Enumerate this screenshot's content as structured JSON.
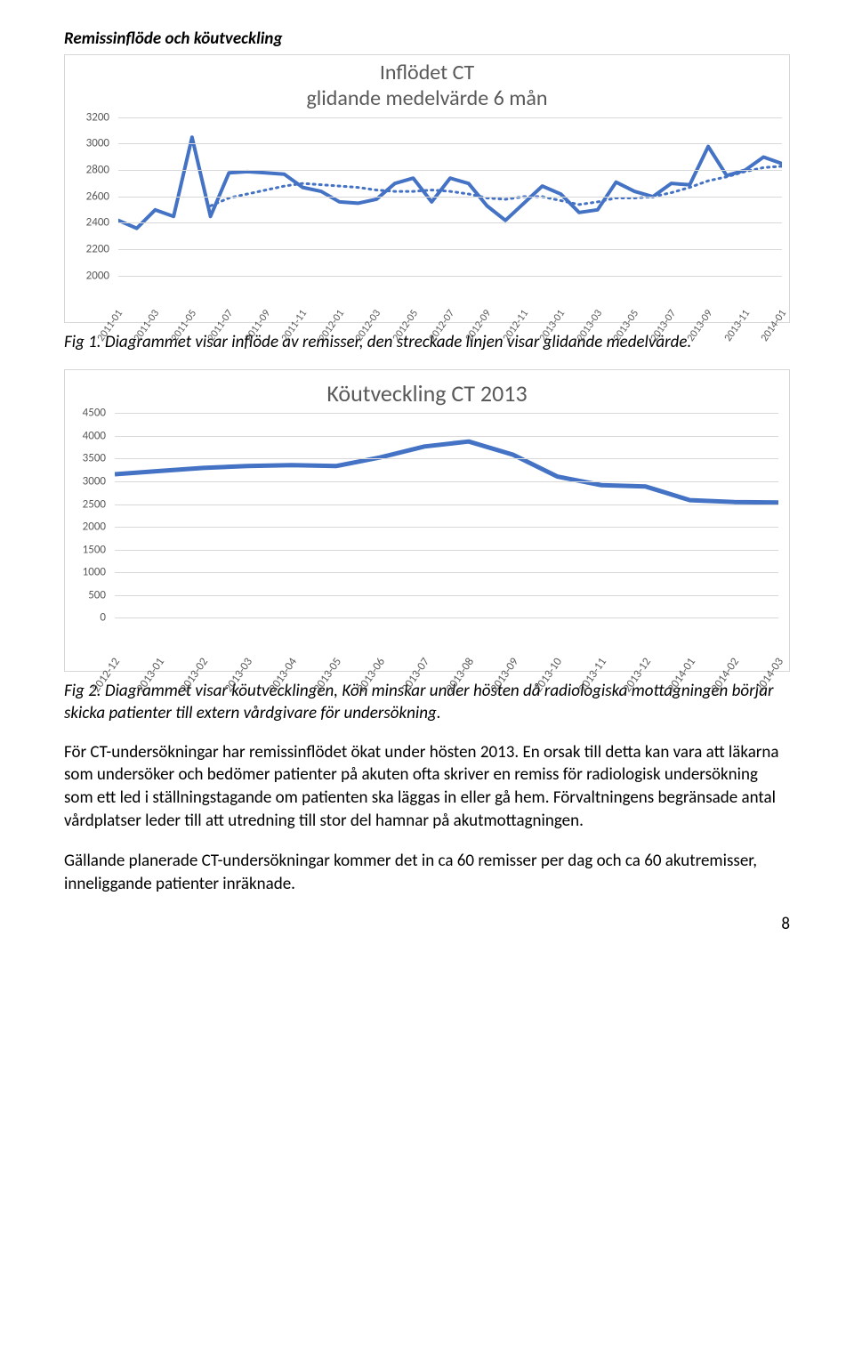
{
  "heading": "Remissinflöde och köutveckling",
  "chart1": {
    "title_line1": "Inflödet CT",
    "title_line2": "glidande medelvärde 6 mån",
    "ymin": 2000,
    "ymax": 3200,
    "ystep": 200,
    "x_labels": [
      "2011-01",
      "2011-03",
      "2011-05",
      "2011-07",
      "2011-09",
      "2011-11",
      "2012-01",
      "2012-03",
      "2012-05",
      "2012-07",
      "2012-09",
      "2012-11",
      "2013-01",
      "2013-03",
      "2013-05",
      "2013-07",
      "2013-09",
      "2013-11",
      "2014-01"
    ],
    "solid_values": [
      2420,
      2360,
      2500,
      2450,
      3050,
      2450,
      2780,
      2790,
      2780,
      2770,
      2670,
      2640,
      2560,
      2550,
      2580,
      2700,
      2740,
      2560,
      2740,
      2700,
      2530,
      2420,
      2550,
      2680,
      2620,
      2480,
      2500,
      2710,
      2640,
      2600,
      2700,
      2690,
      2980,
      2760,
      2800,
      2900,
      2850
    ],
    "dotted_values": [
      null,
      null,
      null,
      null,
      null,
      2530,
      2590,
      2620,
      2650,
      2680,
      2700,
      2690,
      2680,
      2670,
      2650,
      2640,
      2640,
      2650,
      2640,
      2620,
      2590,
      2580,
      2600,
      2600,
      2570,
      2540,
      2560,
      2590,
      2590,
      2600,
      2630,
      2670,
      2720,
      2750,
      2790,
      2820,
      2830
    ],
    "solid_color": "#4472c4",
    "dotted_color": "#4472c4",
    "grid_color": "#d9d9d9",
    "text_color": "#595959"
  },
  "caption1": "Fig 1. Diagrammet visar inflöde av remisser, den streckade linjen visar glidande medelvärde.",
  "chart2": {
    "title": "Köutveckling CT 2013",
    "ymin": 0,
    "ymax": 4500,
    "ystep": 500,
    "x_labels": [
      "2012-12",
      "2013-01",
      "2013-02",
      "2013-03",
      "2013-04",
      "2013-05",
      "2013-06",
      "2013-07",
      "2013-08",
      "2013-09",
      "2013-10",
      "2013-11",
      "2013-12",
      "2014-01",
      "2014-02",
      "2014-03"
    ],
    "values": [
      3150,
      3220,
      3290,
      3330,
      3350,
      3330,
      3520,
      3760,
      3870,
      3580,
      3100,
      2910,
      2880,
      2580,
      2540,
      2530
    ],
    "line_color": "#4472c4",
    "grid_color": "#d9d9d9",
    "text_color": "#595959"
  },
  "caption2": "Fig 2. Diagrammet visar köutvecklingen, Kön minskar under hösten då radiologiska mottagningen börjar skicka patienter till extern vårdgivare för undersökning.",
  "para1": "För CT-undersökningar har remissinflödet ökat under hösten 2013. En orsak till detta kan vara att läkarna som undersöker och bedömer patienter på akuten ofta skriver en remiss för radiologisk undersökning som ett led i ställningstagande om patienten ska läggas in eller gå hem. Förvaltningens begränsade antal vårdplatser leder till att utredning till stor del hamnar på akutmottagningen.",
  "para2": "Gällande planerade CT-undersökningar kommer det in ca 60 remisser per dag och ca 60 akutremisser, inneliggande patienter inräknade.",
  "page_number": "8"
}
